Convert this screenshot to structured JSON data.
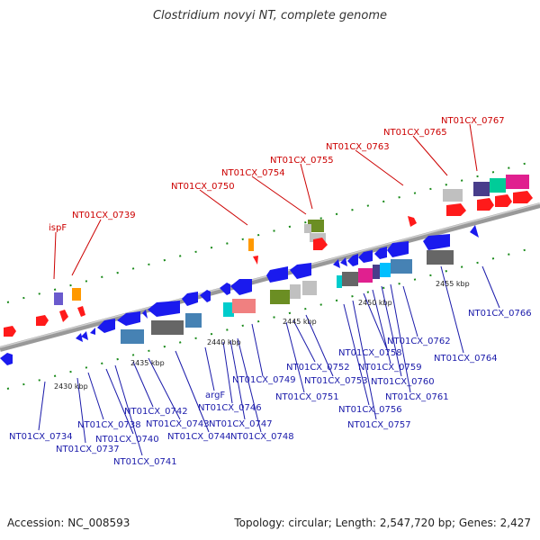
{
  "title": "Clostridium novyi NT, complete genome",
  "footer": {
    "accession": "Accession: NC_008593",
    "info": "Topology: circular; Length: 2,547,720 bp; Genes: 2,427"
  },
  "colors": {
    "axis": "#888888",
    "tick": "#1a8a1a",
    "label_blue": "#1a1aaa",
    "label_red": "#cc0000"
  },
  "ticks": [
    {
      "label": "2430 kbp"
    },
    {
      "label": "2435 kbp"
    },
    {
      "label": "2440 kbp"
    },
    {
      "label": "2445 kbp"
    },
    {
      "label": "2450 kbp"
    },
    {
      "label": "2455 kbp"
    }
  ],
  "labels_top": [
    {
      "text": "ispF"
    },
    {
      "text": "NT01CX_0739"
    },
    {
      "text": "NT01CX_0750"
    },
    {
      "text": "NT01CX_0754"
    },
    {
      "text": "NT01CX_0755"
    },
    {
      "text": "NT01CX_0763"
    },
    {
      "text": "NT01CX_0765"
    },
    {
      "text": "NT01CX_0767"
    }
  ],
  "labels_bottom": [
    {
      "text": "NT01CX_0734"
    },
    {
      "text": "NT01CX_0737"
    },
    {
      "text": "NT01CX_0738"
    },
    {
      "text": "NT01CX_0740"
    },
    {
      "text": "NT01CX_0741"
    },
    {
      "text": "NT01CX_0742"
    },
    {
      "text": "NT01CX_0743"
    },
    {
      "text": "NT01CX_0744"
    },
    {
      "text": "argF"
    },
    {
      "text": "NT01CX_0746"
    },
    {
      "text": "NT01CX_0747"
    },
    {
      "text": "NT01CX_0748"
    },
    {
      "text": "NT01CX_0749"
    },
    {
      "text": "NT01CX_0751"
    },
    {
      "text": "NT01CX_0752"
    },
    {
      "text": "NT01CX_0753"
    },
    {
      "text": "NT01CX_0756"
    },
    {
      "text": "NT01CX_0757"
    },
    {
      "text": "NT01CX_0758"
    },
    {
      "text": "NT01CX_0759"
    },
    {
      "text": "NT01CX_0760"
    },
    {
      "text": "NT01CX_0761"
    },
    {
      "text": "NT01CX_0762"
    },
    {
      "text": "NT01CX_0764"
    },
    {
      "text": "NT01CX_0766"
    }
  ]
}
